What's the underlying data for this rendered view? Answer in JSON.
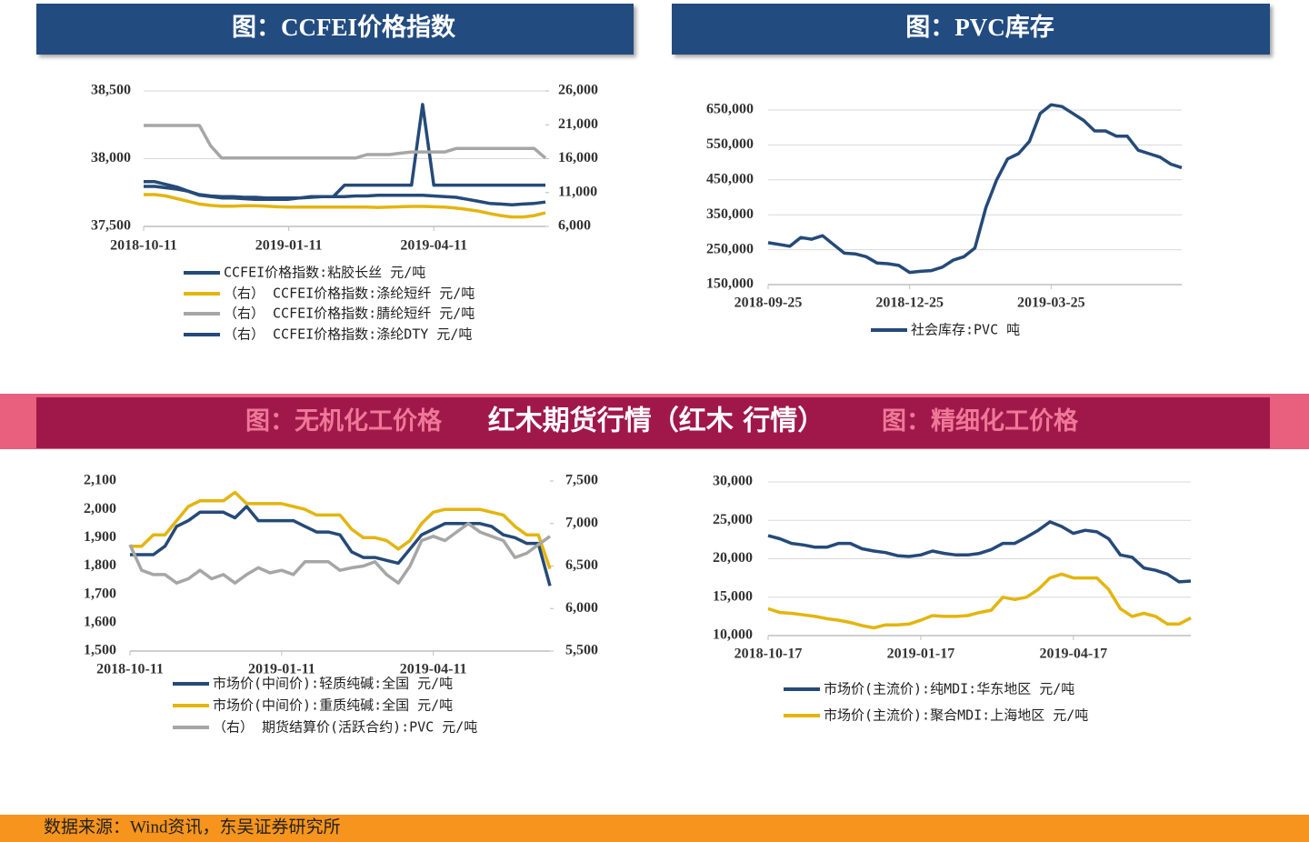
{
  "chart_data": [
    {
      "type": "line",
      "title": "图：CCFEI价格指数",
      "categories": [
        "2018-10-11",
        null,
        null,
        null,
        null,
        null,
        null,
        null,
        null,
        null,
        null,
        null,
        null,
        "2019-01-11",
        null,
        null,
        null,
        null,
        null,
        null,
        null,
        null,
        null,
        null,
        null,
        null,
        "2019-04-11",
        null,
        null,
        null,
        null,
        null,
        null,
        null,
        null,
        null,
        null
      ],
      "ylim": [
        37500,
        38500
      ],
      "yticks": [
        {
          "value": 37500,
          "label": "37,500"
        },
        {
          "value": 38000,
          "label": "38,000"
        },
        {
          "value": 38500,
          "label": "38,500"
        }
      ],
      "y2lim": [
        6000,
        26000
      ],
      "y2ticks": [
        {
          "value": 6000,
          "label": "6,000"
        },
        {
          "value": 11000,
          "label": "11,000"
        },
        {
          "value": 16000,
          "label": "16,000"
        },
        {
          "value": 21000,
          "label": "21,000"
        },
        {
          "value": 26000,
          "label": "26,000"
        }
      ],
      "grid": true,
      "series": [
        {
          "name": "CCFEI价格指数:粘胶长丝  元/吨",
          "color": "#254a78",
          "values": [
            37830,
            37830,
            37810,
            37790,
            37760,
            37730,
            37720,
            37710,
            37710,
            37705,
            37700,
            37700,
            37700,
            37700,
            37710,
            37720,
            37720,
            37720,
            37805,
            37805,
            37805,
            37805,
            37805,
            37805,
            37805,
            38400,
            37805,
            37805,
            37805,
            37805,
            37805,
            37805,
            37805,
            37805,
            37805,
            37805,
            37805
          ]
        },
        {
          "name": "（右） CCFEI价格指数:涤纶短纤  元/吨",
          "color": "#e3b50f",
          "axis": "y2",
          "values": [
            10700,
            10700,
            10500,
            10100,
            9700,
            9300,
            9100,
            9000,
            9000,
            9050,
            9050,
            9000,
            8900,
            8850,
            8850,
            8850,
            8850,
            8850,
            8850,
            8850,
            8850,
            8800,
            8850,
            8900,
            8950,
            8950,
            8900,
            8850,
            8700,
            8500,
            8250,
            7900,
            7600,
            7400,
            7400,
            7600,
            8000
          ]
        },
        {
          "name": "（右） CCFEI价格指数:腈纶短纤  元/吨",
          "color": "#a6a6a6",
          "axis": "y2",
          "values": [
            20900,
            20900,
            20900,
            20900,
            20900,
            20900,
            17900,
            16100,
            16100,
            16100,
            16100,
            16100,
            16100,
            16100,
            16100,
            16100,
            16100,
            16100,
            16100,
            16100,
            16600,
            16600,
            16600,
            16800,
            17000,
            17000,
            17000,
            17000,
            17500,
            17500,
            17500,
            17500,
            17500,
            17500,
            17500,
            17500,
            16100
          ]
        },
        {
          "name": "（右） CCFEI价格指数:涤纶DTY  元/吨",
          "color": "#254a78",
          "axis": "y2",
          "values": [
            11900,
            11900,
            11700,
            11500,
            11200,
            10700,
            10500,
            10400,
            10400,
            10300,
            10300,
            10200,
            10200,
            10200,
            10200,
            10300,
            10400,
            10400,
            10400,
            10500,
            10500,
            10600,
            10600,
            10600,
            10600,
            10600,
            10500,
            10400,
            10300,
            10000,
            9700,
            9400,
            9300,
            9200,
            9300,
            9400,
            9600
          ]
        }
      ]
    },
    {
      "type": "line",
      "title": "图：PVC库存",
      "categories": [
        "2018-09-25",
        null,
        null,
        null,
        null,
        null,
        null,
        null,
        null,
        null,
        null,
        null,
        null,
        "2018-12-25",
        null,
        null,
        null,
        null,
        null,
        null,
        null,
        null,
        null,
        null,
        null,
        null,
        "2019-03-25",
        null,
        null,
        null,
        null,
        null,
        null,
        null,
        null,
        null,
        null,
        null,
        null
      ],
      "ylim": [
        150000,
        650000
      ],
      "yticks": [
        {
          "value": 150000,
          "label": "150,000"
        },
        {
          "value": 250000,
          "label": "250,000"
        },
        {
          "value": 350000,
          "label": "350,000"
        },
        {
          "value": 450000,
          "label": "450,000"
        },
        {
          "value": 550000,
          "label": "550,000"
        },
        {
          "value": 650000,
          "label": "650,000"
        }
      ],
      "grid": true,
      "series": [
        {
          "name": "社会库存:PVC  吨",
          "color": "#254a78",
          "values": [
            270000,
            265000,
            260000,
            285000,
            280000,
            290000,
            265000,
            240000,
            238000,
            230000,
            212000,
            210000,
            205000,
            185000,
            188000,
            190000,
            200000,
            220000,
            230000,
            255000,
            370000,
            450000,
            510000,
            525000,
            560000,
            640000,
            665000,
            660000,
            640000,
            620000,
            590000,
            590000,
            575000,
            575000,
            535000,
            525000,
            515000,
            495000,
            485000
          ]
        }
      ]
    },
    {
      "type": "line",
      "title": "图：无机化工价格",
      "categories": [
        "2018-10-11",
        null,
        null,
        null,
        null,
        null,
        null,
        null,
        null,
        null,
        null,
        null,
        null,
        "2019-01-11",
        null,
        null,
        null,
        null,
        null,
        null,
        null,
        null,
        null,
        null,
        null,
        null,
        "2019-04-11",
        null,
        null,
        null,
        null,
        null,
        null,
        null,
        null,
        null,
        null
      ],
      "ylim": [
        1500,
        2100
      ],
      "yticks": [
        {
          "value": 1500,
          "label": "1,500"
        },
        {
          "value": 1600,
          "label": "1,600"
        },
        {
          "value": 1700,
          "label": "1,700"
        },
        {
          "value": 1800,
          "label": "1,800"
        },
        {
          "value": 1900,
          "label": "1,900"
        },
        {
          "value": 2000,
          "label": "2,000"
        },
        {
          "value": 2100,
          "label": "2,100"
        }
      ],
      "y2lim": [
        5500,
        7500
      ],
      "y2ticks": [
        {
          "value": 5500,
          "label": "5,500"
        },
        {
          "value": 6000,
          "label": "6,000"
        },
        {
          "value": 6500,
          "label": "6,500"
        },
        {
          "value": 7000,
          "label": "7,000"
        },
        {
          "value": 7500,
          "label": "7,500"
        }
      ],
      "grid": false,
      "series": [
        {
          "name": "市场价(中间价):轻质纯碱:全国  元/吨",
          "color": "#254a78",
          "values": [
            1840,
            1840,
            1840,
            1870,
            1940,
            1960,
            1990,
            1990,
            1990,
            1970,
            2010,
            1960,
            1960,
            1960,
            1960,
            1940,
            1920,
            1920,
            1910,
            1850,
            1830,
            1830,
            1820,
            1810,
            1860,
            1910,
            1930,
            1950,
            1950,
            1950,
            1950,
            1940,
            1910,
            1900,
            1880,
            1880,
            1730
          ]
        },
        {
          "name": "市场价(中间价):重质纯碱:全国  元/吨",
          "color": "#e3b50f",
          "values": [
            1870,
            1870,
            1910,
            1910,
            1960,
            2010,
            2030,
            2030,
            2030,
            2060,
            2020,
            2020,
            2020,
            2020,
            2010,
            2000,
            1980,
            1980,
            1980,
            1930,
            1900,
            1900,
            1890,
            1860,
            1890,
            1950,
            1990,
            2000,
            2000,
            2000,
            2000,
            1990,
            1980,
            1940,
            1910,
            1910,
            1790
          ]
        },
        {
          "name": "（右） 期货结算价(活跃合约):PVC  元/吨",
          "color": "#a6a6a6",
          "axis": "y2",
          "values": [
            6750,
            6450,
            6400,
            6400,
            6300,
            6350,
            6450,
            6350,
            6400,
            6300,
            6400,
            6480,
            6420,
            6450,
            6400,
            6550,
            6550,
            6550,
            6450,
            6480,
            6500,
            6550,
            6400,
            6300,
            6500,
            6800,
            6850,
            6800,
            6900,
            7000,
            6900,
            6850,
            6800,
            6600,
            6650,
            6750,
            6850
          ]
        }
      ]
    },
    {
      "type": "line",
      "title": "图：精细化工价格",
      "categories": [
        "2018-10-17",
        null,
        null,
        null,
        null,
        null,
        null,
        null,
        null,
        null,
        null,
        null,
        null,
        "2019-01-17",
        null,
        null,
        null,
        null,
        null,
        null,
        null,
        null,
        null,
        null,
        null,
        null,
        "2019-04-17",
        null,
        null,
        null,
        null,
        null,
        null,
        null,
        null,
        null,
        null
      ],
      "ylim": [
        10000,
        30000
      ],
      "yticks": [
        {
          "value": 10000,
          "label": "10,000"
        },
        {
          "value": 15000,
          "label": "15,000"
        },
        {
          "value": 20000,
          "label": "20,000"
        },
        {
          "value": 25000,
          "label": "25,000"
        },
        {
          "value": 30000,
          "label": "30,000"
        }
      ],
      "grid": true,
      "series": [
        {
          "name": "市场价(主流价):纯MDI:华东地区  元/吨",
          "color": "#254a78",
          "values": [
            23000,
            22600,
            22000,
            21800,
            21500,
            21500,
            22000,
            22000,
            21300,
            21000,
            20800,
            20400,
            20300,
            20500,
            21000,
            20700,
            20500,
            20500,
            20700,
            21200,
            22000,
            22000,
            22800,
            23700,
            24800,
            24200,
            23300,
            23700,
            23500,
            22600,
            20500,
            20200,
            18800,
            18500,
            18000,
            17000,
            17100
          ]
        },
        {
          "name": "市场价(主流价):聚合MDI:上海地区  元/吨",
          "color": "#e3b50f",
          "values": [
            13500,
            13000,
            12900,
            12700,
            12500,
            12200,
            12000,
            11700,
            11300,
            11000,
            11400,
            11400,
            11500,
            12000,
            12600,
            12500,
            12500,
            12600,
            13000,
            13300,
            15000,
            14700,
            15000,
            16000,
            17500,
            18000,
            17500,
            17500,
            17500,
            16000,
            13500,
            12500,
            12900,
            12500,
            11500,
            11500,
            12300
          ]
        }
      ]
    }
  ],
  "overlay": "红木期货行情（红木 行情）",
  "source": "数据来源：Wind资讯，东吴证券研究所"
}
